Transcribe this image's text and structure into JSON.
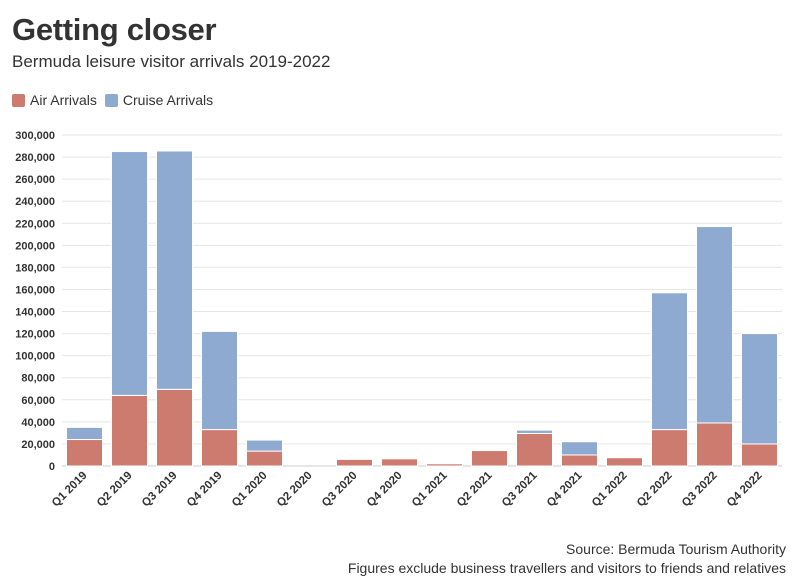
{
  "colors": {
    "air": "#cd7b6f",
    "cruise": "#8eaad1",
    "grid": "#e6e6e6",
    "text": "#333333"
  },
  "chart_data": {
    "type": "bar",
    "stacked": true,
    "title": "Getting closer",
    "subtitle": "Bermuda leisure visitor arrivals 2019-2022",
    "categories": [
      "Q1 2019",
      "Q2 2019",
      "Q3 2019",
      "Q4 2019",
      "Q1 2020",
      "Q2 2020",
      "Q3 2020",
      "Q4 2020",
      "Q1 2021",
      "Q2 2021",
      "Q3 2021",
      "Q4 2021",
      "Q1 2022",
      "Q2 2022",
      "Q3 2022",
      "Q4 2022"
    ],
    "series": [
      {
        "name": "Air Arrivals",
        "values": [
          24000,
          64000,
          69500,
          33000,
          13500,
          0,
          6000,
          6500,
          2000,
          14000,
          29500,
          10000,
          7500,
          33000,
          39000,
          20000
        ]
      },
      {
        "name": "Cruise Arrivals",
        "values": [
          11000,
          221000,
          216000,
          89000,
          10000,
          0,
          0,
          0,
          0,
          0,
          3000,
          12000,
          0,
          124000,
          178000,
          100000
        ]
      }
    ],
    "yticks": [
      "0",
      "20,000",
      "40,000",
      "60,000",
      "80,000",
      "100,000",
      "120,000",
      "140,000",
      "160,000",
      "180,000",
      "200,000",
      "220,000",
      "240,000",
      "260,000",
      "280,000",
      "300,000"
    ],
    "ylim": [
      0,
      300000
    ],
    "grid": true,
    "legend_position": "top-left",
    "source": "Source: Bermuda Tourism Authority",
    "note": "Figures exclude business travellers and visitors to friends and relatives"
  }
}
